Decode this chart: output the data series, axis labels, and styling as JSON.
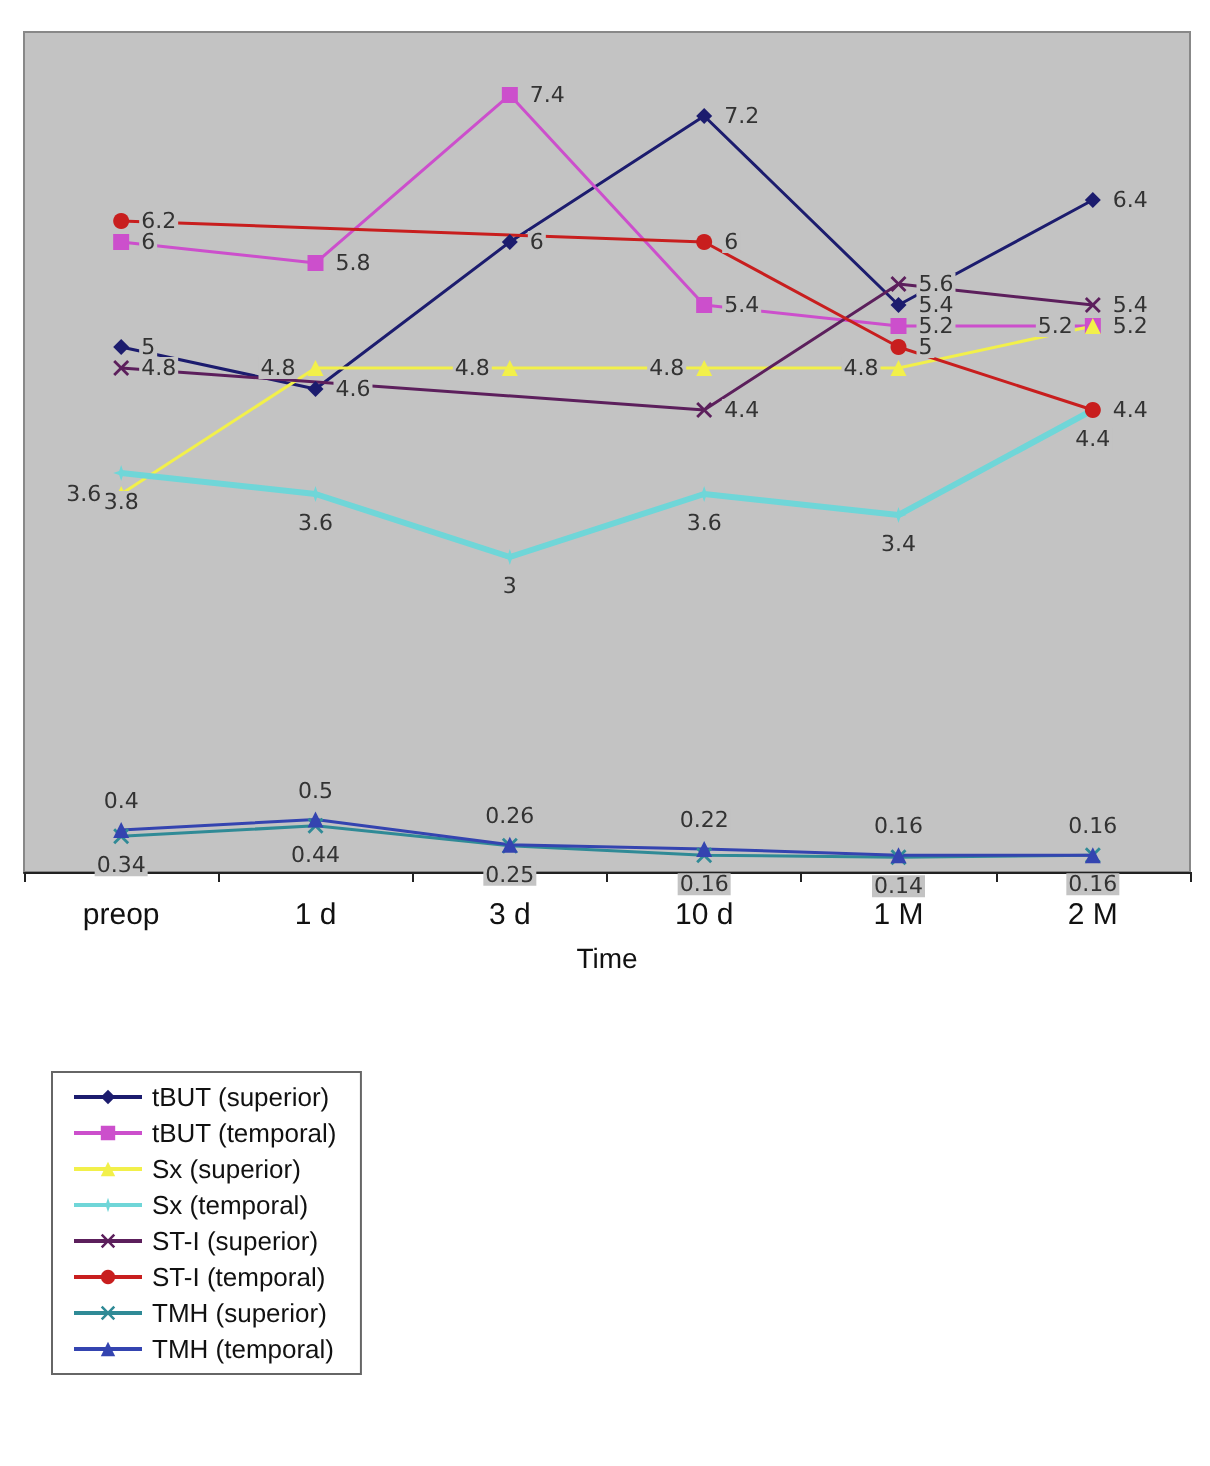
{
  "chart_data": {
    "type": "line",
    "xlabel": "Time",
    "categories": [
      "preop",
      "1 d",
      "3 d",
      "10 d",
      "1 M",
      "2 M"
    ],
    "ylim": [
      0,
      8
    ],
    "tick_labels": "x",
    "grid": false,
    "legend": "bottom left",
    "data_labels": true,
    "line_style": "solid",
    "series": [
      {
        "name": "tBUT (superior)",
        "color": "#1c1c6e",
        "marker": "diamond",
        "values": [
          5,
          4.6,
          6,
          7.2,
          5.4,
          6.4
        ]
      },
      {
        "name": "tBUT (temporal)",
        "color": "#cc4fcc",
        "marker": "square",
        "values": [
          6,
          5.8,
          7.4,
          5.4,
          5.2,
          5.2
        ]
      },
      {
        "name": "Sx (superior)",
        "color": "#f2f04a",
        "marker": "triangle",
        "values": [
          3.6,
          4.8,
          4.8,
          4.8,
          4.8,
          5.2
        ]
      },
      {
        "name": "Sx (temporal)",
        "color": "#6fd6d8",
        "marker": "star",
        "values": [
          3.8,
          3.6,
          3,
          3.6,
          3.4,
          4.4
        ]
      },
      {
        "name": "ST-I (superior)",
        "color": "#5c1f5c",
        "marker": "cross",
        "values": [
          4.8,
          null,
          null,
          4.4,
          5.6,
          5.4
        ]
      },
      {
        "name": "ST-I (temporal)",
        "color": "#c81e1e",
        "marker": "circle",
        "values": [
          6.2,
          null,
          null,
          6,
          5,
          4.4
        ]
      },
      {
        "name": "TMH (superior)",
        "color": "#2f8a96",
        "marker": "cross",
        "values": [
          0.34,
          0.44,
          0.25,
          0.16,
          0.14,
          0.16
        ]
      },
      {
        "name": "TMH (temporal)",
        "color": "#3444b0",
        "marker": "triangle",
        "values": [
          0.4,
          0.5,
          0.26,
          0.22,
          0.16,
          0.16
        ]
      }
    ]
  }
}
